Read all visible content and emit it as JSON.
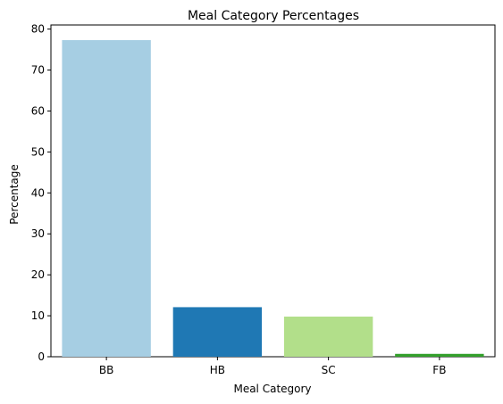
{
  "chart_data": {
    "type": "bar",
    "title": "Meal Category Percentages",
    "xlabel": "Meal Category",
    "ylabel": "Percentage",
    "categories": [
      "BB",
      "HB",
      "SC",
      "FB"
    ],
    "values": [
      77.3,
      12.1,
      9.8,
      0.7
    ],
    "colors": [
      "#a6cee3",
      "#1f78b4",
      "#b2df8a",
      "#33a02c"
    ],
    "ylim": [
      0,
      81
    ],
    "yticks": [
      0,
      10,
      20,
      30,
      40,
      50,
      60,
      70,
      80
    ],
    "grid": false,
    "legend": "none"
  }
}
